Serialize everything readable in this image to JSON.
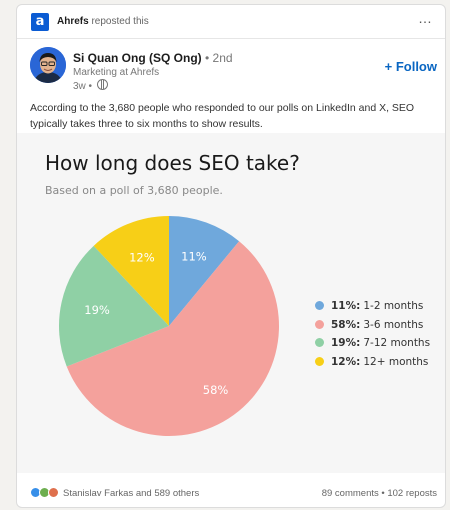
{
  "repost": {
    "logo_letter": "a",
    "company": "Ahrefs",
    "suffix": "reposted this",
    "more_icon": "…"
  },
  "author": {
    "name": "Si Quan Ong (SQ Ong)",
    "degree": "• 2nd",
    "headline": "Marketing at Ahrefs",
    "time": "3w •",
    "visibility_icon": "globe-icon"
  },
  "follow_label": "+ Follow",
  "post_text": "According to the 3,680 people who responded to our polls on LinkedIn and X, SEO typically takes three to six months to show results.",
  "chart_data": {
    "type": "pie",
    "title": "How long does SEO take?",
    "subtitle": "Based on a poll of 3,680 people.",
    "slices": [
      {
        "label": "1-2 months",
        "value": 11,
        "pct_label": "11%",
        "color": "#6fa8dc"
      },
      {
        "label": "3-6 months",
        "value": 58,
        "pct_label": "58%",
        "color": "#f4a19c"
      },
      {
        "label": "7-12 months",
        "value": 19,
        "pct_label": "19%",
        "color": "#8fd0a5"
      },
      {
        "label": "12+ months",
        "value": 12,
        "pct_label": "12%",
        "color": "#f7cf17"
      }
    ],
    "legend_position": "right"
  },
  "footer": {
    "reaction_icons": [
      "like-icon",
      "celebrate-icon",
      "love-icon"
    ],
    "reactors": "Stanislav Farkas and 589 others",
    "counts": "89 comments • 102 reposts"
  }
}
